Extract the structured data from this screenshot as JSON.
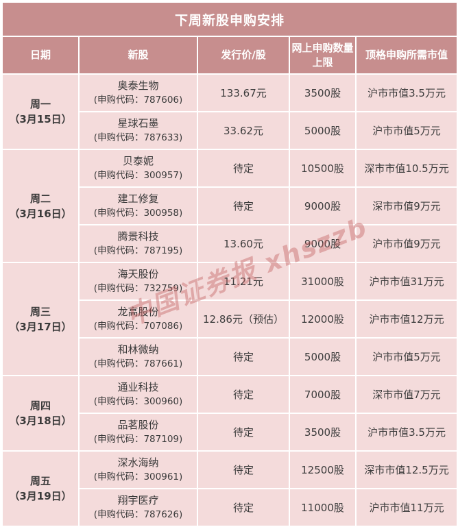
{
  "title": "下周新股申购安排",
  "watermark": "中国证券报 xhszzb",
  "colors": {
    "header_bg": "#c78e8e",
    "cell_bg": "#f4dbdb",
    "grid_line": "#ffffff",
    "header_text": "#ffffff",
    "cell_text": "#3c3c3c",
    "watermark_text": "rgba(193,96,96,0.42)"
  },
  "table": {
    "columns": [
      "日期",
      "新股",
      "发行价/股",
      "网上申购数量上限",
      "顶格申购所需市值"
    ],
    "days": [
      {
        "label": "周一",
        "date": "（3月15日）",
        "stocks": [
          {
            "name": "奥泰生物",
            "code_line": "(申购代码：787606)",
            "price": "133.67元",
            "limit": "3500股",
            "value": "沪市市值3.5万元"
          },
          {
            "name": "星球石墨",
            "code_line": "(申购代码：787633)",
            "price": "33.62元",
            "limit": "5000股",
            "value": "沪市市值5万元"
          }
        ]
      },
      {
        "label": "周二",
        "date": "（3月16日）",
        "stocks": [
          {
            "name": "贝泰妮",
            "code_line": "(申购代码：300957)",
            "price": "待定",
            "limit": "10500股",
            "value": "深市市值10.5万元"
          },
          {
            "name": "建工修复",
            "code_line": "(申购代码：300958)",
            "price": "待定",
            "limit": "9000股",
            "value": "深市市值9万元"
          },
          {
            "name": "腾景科技",
            "code_line": "(申购代码：787195)",
            "price": "13.60元",
            "limit": "9000股",
            "value": "沪市市值9万元"
          }
        ]
      },
      {
        "label": "周三",
        "date": "（3月17日）",
        "stocks": [
          {
            "name": "海天股份",
            "code_line": "(申购代码：732759)",
            "price": "11.21元",
            "limit": "31000股",
            "value": "沪市市值31万元"
          },
          {
            "name": "龙高股份",
            "code_line": "(申购代码：707086)",
            "price": "12.86元（预估）",
            "limit": "12000股",
            "value": "沪市市值12万元"
          },
          {
            "name": "和林微纳",
            "code_line": "(申购代码：787661)",
            "price": "待定",
            "limit": "5000股",
            "value": "沪市市值5万元"
          }
        ]
      },
      {
        "label": "周四",
        "date": "（3月18日）",
        "stocks": [
          {
            "name": "通业科技",
            "code_line": "(申购代码：300960)",
            "price": "待定",
            "limit": "7000股",
            "value": "深市市值7万元"
          },
          {
            "name": "品茗股份",
            "code_line": "(申购代码：787109)",
            "price": "待定",
            "limit": "3500股",
            "value": "沪市市值3.5万元"
          }
        ]
      },
      {
        "label": "周五",
        "date": "（3月19日）",
        "stocks": [
          {
            "name": "深水海纳",
            "code_line": "(申购代码：300961)",
            "price": "待定",
            "limit": "12500股",
            "value": "深市市值12.5万元"
          },
          {
            "name": "翔宇医疗",
            "code_line": "(申购代码：787626)",
            "price": "待定",
            "limit": "11000股",
            "value": "沪市市值11万元"
          }
        ]
      }
    ]
  },
  "chart_data": {
    "type": "table",
    "title": "下周新股申购安排",
    "columns": [
      "日期",
      "新股",
      "发行价/股",
      "网上申购数量上限",
      "顶格申购所需市值"
    ],
    "rows": [
      [
        "周一（3月15日）",
        "奥泰生物 (申购代码：787606)",
        "133.67元",
        "3500股",
        "沪市市值3.5万元"
      ],
      [
        "周一（3月15日）",
        "星球石墨 (申购代码：787633)",
        "33.62元",
        "5000股",
        "沪市市值5万元"
      ],
      [
        "周二（3月16日）",
        "贝泰妮 (申购代码：300957)",
        "待定",
        "10500股",
        "深市市值10.5万元"
      ],
      [
        "周二（3月16日）",
        "建工修复 (申购代码：300958)",
        "待定",
        "9000股",
        "深市市值9万元"
      ],
      [
        "周二（3月16日）",
        "腾景科技 (申购代码：787195)",
        "13.60元",
        "9000股",
        "沪市市值9万元"
      ],
      [
        "周三（3月17日）",
        "海天股份 (申购代码：732759)",
        "11.21元",
        "31000股",
        "沪市市值31万元"
      ],
      [
        "周三（3月17日）",
        "龙高股份 (申购代码：707086)",
        "12.86元（预估）",
        "12000股",
        "沪市市值12万元"
      ],
      [
        "周三（3月17日）",
        "和林微纳 (申购代码：787661)",
        "待定",
        "5000股",
        "沪市市值5万元"
      ],
      [
        "周四（3月18日）",
        "通业科技 (申购代码：300960)",
        "待定",
        "7000股",
        "深市市值7万元"
      ],
      [
        "周四（3月18日）",
        "品茗股份 (申购代码：787109)",
        "待定",
        "3500股",
        "沪市市值3.5万元"
      ],
      [
        "周五（3月19日）",
        "深水海纳 (申购代码：300961)",
        "待定",
        "12500股",
        "深市市值12.5万元"
      ],
      [
        "周五（3月19日）",
        "翔宇医疗 (申购代码：787626)",
        "待定",
        "11000股",
        "沪市市值11万元"
      ]
    ]
  }
}
